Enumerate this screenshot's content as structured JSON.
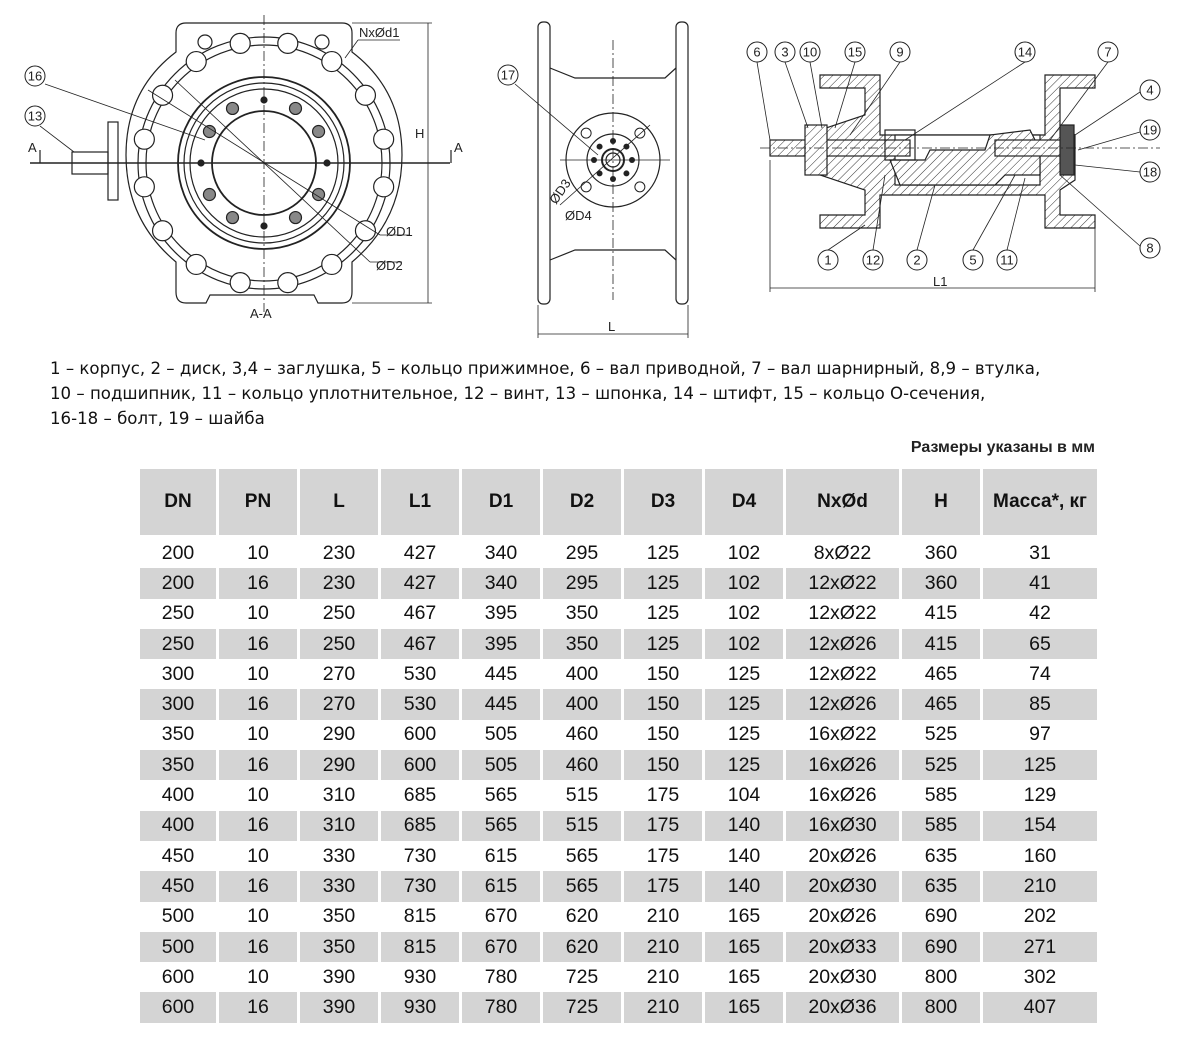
{
  "drawings": {
    "front_view": {
      "labels": {
        "nxd1": "NxØd1",
        "h": "H",
        "d1": "ØD1",
        "d2": "ØD2",
        "section": "A-A",
        "a_left": "A",
        "a_right": "A"
      },
      "callouts": [
        "16",
        "13"
      ]
    },
    "side_view": {
      "labels": {
        "d3": "ØD3",
        "d4": "ØD4",
        "l": "L"
      },
      "callouts": [
        "17"
      ]
    },
    "section_view": {
      "labels": {
        "l1": "L1"
      },
      "callouts": [
        "6",
        "3",
        "10",
        "15",
        "9",
        "14",
        "7",
        "4",
        "19",
        "18",
        "8",
        "1",
        "12",
        "2",
        "5",
        "11"
      ]
    }
  },
  "legend": [
    "1 – корпус, 2 – диск, 3,4 – заглушка, 5 – кольцо прижимное, 6 – вал приводной, 7 – вал шарнирный, 8,9 – втулка,",
    "10 – подшипник, 11 – кольцо уплотнительное, 12 – винт, 13 – шпонка, 14 – штифт, 15 – кольцо О-сечения,",
    "16-18 – болт, 19 – шайба"
  ],
  "note": "Размеры указаны в мм",
  "table": {
    "headers": [
      "DN",
      "PN",
      "L",
      "L1",
      "D1",
      "D2",
      "D3",
      "D4",
      "NxØd",
      "H",
      "Масса*, кг"
    ],
    "rows": [
      [
        "200",
        "10",
        "230",
        "427",
        "340",
        "295",
        "125",
        "102",
        "8xØ22",
        "360",
        "31"
      ],
      [
        "200",
        "16",
        "230",
        "427",
        "340",
        "295",
        "125",
        "102",
        "12xØ22",
        "360",
        "41"
      ],
      [
        "250",
        "10",
        "250",
        "467",
        "395",
        "350",
        "125",
        "102",
        "12xØ22",
        "415",
        "42"
      ],
      [
        "250",
        "16",
        "250",
        "467",
        "395",
        "350",
        "125",
        "102",
        "12xØ26",
        "415",
        "65"
      ],
      [
        "300",
        "10",
        "270",
        "530",
        "445",
        "400",
        "150",
        "125",
        "12xØ22",
        "465",
        "74"
      ],
      [
        "300",
        "16",
        "270",
        "530",
        "445",
        "400",
        "150",
        "125",
        "12xØ26",
        "465",
        "85"
      ],
      [
        "350",
        "10",
        "290",
        "600",
        "505",
        "460",
        "150",
        "125",
        "16xØ22",
        "525",
        "97"
      ],
      [
        "350",
        "16",
        "290",
        "600",
        "505",
        "460",
        "150",
        "125",
        "16xØ26",
        "525",
        "125"
      ],
      [
        "400",
        "10",
        "310",
        "685",
        "565",
        "515",
        "175",
        "104",
        "16xØ26",
        "585",
        "129"
      ],
      [
        "400",
        "16",
        "310",
        "685",
        "565",
        "515",
        "175",
        "140",
        "16xØ30",
        "585",
        "154"
      ],
      [
        "450",
        "10",
        "330",
        "730",
        "615",
        "565",
        "175",
        "140",
        "20xØ26",
        "635",
        "160"
      ],
      [
        "450",
        "16",
        "330",
        "730",
        "615",
        "565",
        "175",
        "140",
        "20xØ30",
        "635",
        "210"
      ],
      [
        "500",
        "10",
        "350",
        "815",
        "670",
        "620",
        "210",
        "165",
        "20xØ26",
        "690",
        "202"
      ],
      [
        "500",
        "16",
        "350",
        "815",
        "670",
        "620",
        "210",
        "165",
        "20xØ33",
        "690",
        "271"
      ],
      [
        "600",
        "10",
        "390",
        "930",
        "780",
        "725",
        "210",
        "165",
        "20xØ30",
        "800",
        "302"
      ],
      [
        "600",
        "16",
        "390",
        "930",
        "780",
        "725",
        "210",
        "165",
        "20xØ36",
        "800",
        "407"
      ]
    ],
    "shade_color": "#d4d4d4"
  }
}
